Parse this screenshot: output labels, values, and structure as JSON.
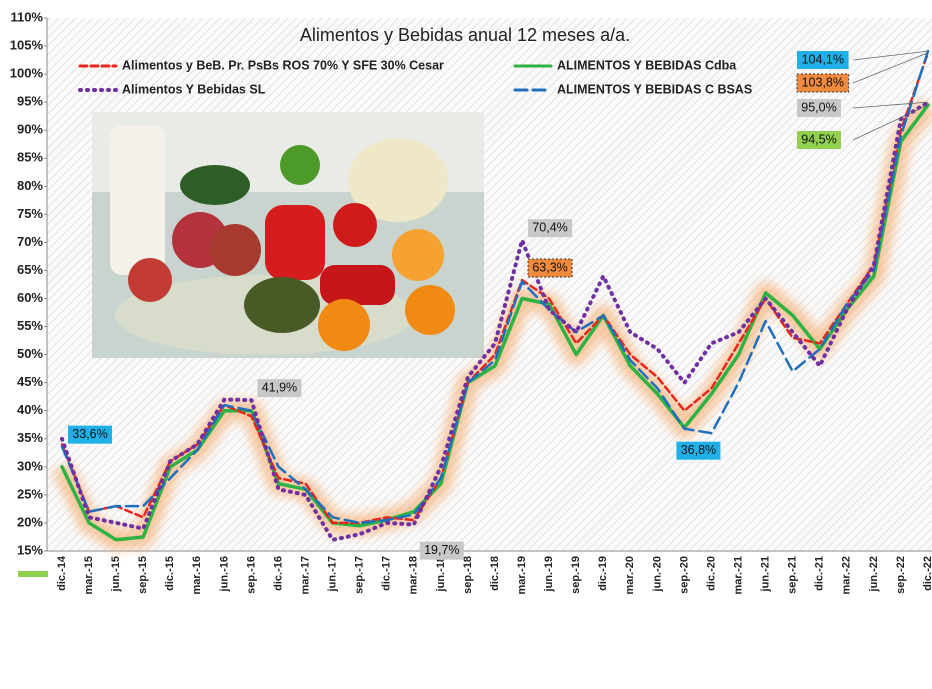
{
  "chart_data": {
    "type": "line",
    "title": "Alimentos y Bebidas anual 12 meses a/a.",
    "categories": [
      "dic.-14",
      "mar.-15",
      "jun.-15",
      "sep.-15",
      "dic.-15",
      "mar.-16",
      "jun.-16",
      "sep.-16",
      "dic.-16",
      "mar.-17",
      "jun.-17",
      "sep.-17",
      "dic.-17",
      "mar.-18",
      "jun.-18",
      "sep.-18",
      "dic.-18",
      "mar.-19",
      "jun.-19",
      "sep.-19",
      "dic.-19",
      "mar.-20",
      "jun.-20",
      "sep.-20",
      "dic.-20",
      "mar.-21",
      "jun.-21",
      "sep.-21",
      "dic.-21",
      "mar.-22",
      "jun.-22",
      "sep.-22",
      "dic.-22"
    ],
    "series": [
      {
        "name": "Alimentos y BeB. Pr. PsBs ROS 70% Y SFE 30% Cesar",
        "color": "#e8261c",
        "dash": "dash",
        "values": [
          34,
          22,
          23,
          21,
          31,
          34,
          41,
          39,
          28,
          27,
          20,
          20,
          21,
          20.5,
          28,
          45,
          50,
          63.3,
          60,
          52,
          57,
          50,
          46,
          40,
          44,
          52,
          60,
          53,
          52,
          59,
          66,
          90,
          103.8
        ],
        "value_labels": [
          null,
          null,
          null,
          null,
          null,
          null,
          null,
          null,
          null,
          null,
          null,
          null,
          null,
          null,
          null,
          null,
          null,
          "63,3%",
          null,
          null,
          null,
          null,
          null,
          null,
          null,
          null,
          null,
          null,
          null,
          null,
          null,
          null,
          "103,8%"
        ]
      },
      {
        "name": "ALIMENTOS Y BEBIDAS Cdba",
        "color": "#2db341",
        "dash": "solid",
        "values": [
          30,
          20,
          17,
          17.5,
          30,
          33,
          40,
          40,
          27,
          26,
          20,
          19.5,
          20.5,
          22,
          27,
          45,
          48,
          60,
          59,
          50,
          57,
          48,
          43,
          37,
          43,
          50,
          61,
          57,
          51,
          58,
          64,
          88,
          94.5
        ],
        "value_labels": [
          null,
          null,
          null,
          null,
          null,
          null,
          null,
          null,
          null,
          null,
          null,
          null,
          null,
          null,
          null,
          null,
          null,
          null,
          null,
          null,
          null,
          null,
          null,
          null,
          null,
          null,
          null,
          null,
          null,
          null,
          null,
          null,
          "94,5%"
        ]
      },
      {
        "name": "Alimentos Y Bebidas SL",
        "color": "#7030a0",
        "dash": "dot",
        "values": [
          35,
          21,
          20,
          19,
          31,
          34,
          42,
          41.9,
          26,
          25,
          17,
          18,
          20,
          19.7,
          30,
          46,
          52,
          70.4,
          58,
          54,
          64,
          54,
          51,
          45,
          52,
          54,
          60,
          54,
          48,
          58,
          66,
          92,
          95.0
        ],
        "value_labels": [
          null,
          null,
          null,
          null,
          null,
          null,
          null,
          "41,9%",
          null,
          null,
          null,
          null,
          null,
          "19,7%",
          null,
          null,
          null,
          "70,4%",
          null,
          null,
          null,
          null,
          null,
          null,
          null,
          null,
          null,
          null,
          null,
          null,
          null,
          null,
          "95,0%"
        ]
      },
      {
        "name": "ALIMENTOS Y BEBIDAS C BSAS",
        "color": "#1f6fbf",
        "dash": "longdash",
        "values": [
          33.6,
          22,
          23,
          23,
          28,
          33,
          41,
          40,
          30,
          26,
          21,
          20,
          20.5,
          21.5,
          28,
          45,
          49,
          63,
          58,
          54,
          57,
          49,
          44,
          36.8,
          36,
          45,
          56,
          47,
          51,
          59,
          65,
          89,
          104.1
        ],
        "value_labels": [
          "33,6%",
          null,
          null,
          null,
          null,
          null,
          null,
          null,
          null,
          null,
          null,
          null,
          null,
          null,
          null,
          null,
          null,
          null,
          null,
          null,
          null,
          null,
          null,
          "36,8%",
          null,
          null,
          null,
          null,
          null,
          null,
          null,
          null,
          "104,1%"
        ]
      }
    ],
    "ylim": [
      15,
      110
    ],
    "yticks": [
      {
        "value": 15,
        "label": "15%"
      },
      {
        "value": 20,
        "label": "20%"
      },
      {
        "value": 25,
        "label": "25%"
      },
      {
        "value": 30,
        "label": "30%"
      },
      {
        "value": 35,
        "label": "35%"
      },
      {
        "value": 40,
        "label": "40%"
      },
      {
        "value": 45,
        "label": "45%"
      },
      {
        "value": 50,
        "label": "50%"
      },
      {
        "value": 55,
        "label": "55%"
      },
      {
        "value": 60,
        "label": "60%"
      },
      {
        "value": 65,
        "label": "65%"
      },
      {
        "value": 70,
        "label": "70%"
      },
      {
        "value": 75,
        "label": "75%"
      },
      {
        "value": 80,
        "label": "80%"
      },
      {
        "value": 85,
        "label": "85%"
      },
      {
        "value": 90,
        "label": "90%"
      },
      {
        "value": 95,
        "label": "95%"
      },
      {
        "value": 100,
        "label": "100%"
      },
      {
        "value": 105,
        "label": "105%"
      },
      {
        "value": 110,
        "label": "110%"
      }
    ],
    "legend": "top"
  }
}
